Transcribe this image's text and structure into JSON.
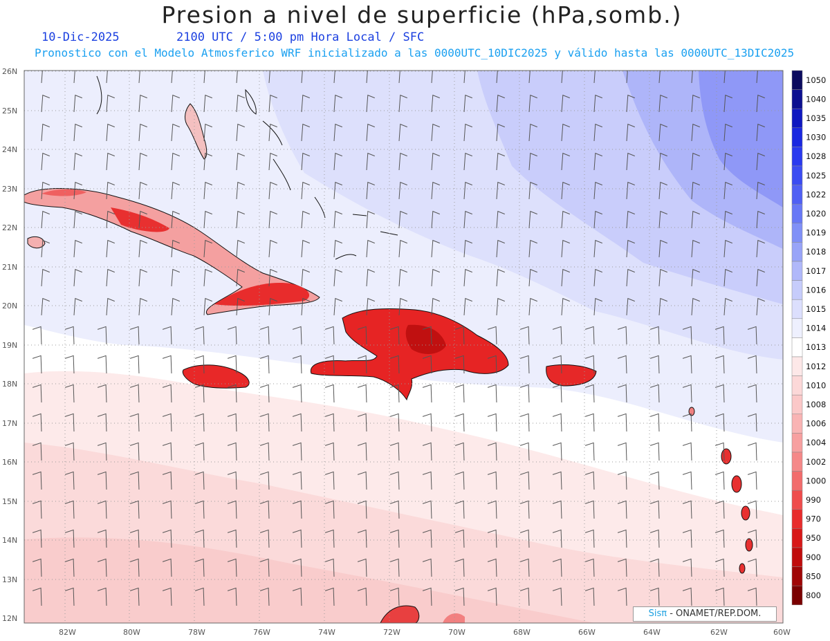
{
  "header": {
    "title": "Presion a nivel de superficie (hPa,somb.)",
    "date": "10-Dic-2025",
    "time": "2100 UTC / 5:00 pm Hora Local / SFC",
    "subtitle": "Pronostico con el Modelo Atmosferico WRF inicializado a las 0000UTC_10DIC2025 y válido hasta las  0000UTC_13DIC2025"
  },
  "map": {
    "lat_labels": [
      "26N",
      "25N",
      "24N",
      "23N",
      "22N",
      "21N",
      "20N",
      "19N",
      "18N",
      "17N",
      "16N",
      "15N",
      "14N",
      "13N",
      "12N"
    ],
    "lon_labels": [
      "82W",
      "80W",
      "78W",
      "76W",
      "74W",
      "72W",
      "70W",
      "68W",
      "66W",
      "64W",
      "62W",
      "60W"
    ]
  },
  "colorbar": {
    "labels": [
      "1050",
      "1040",
      "1035",
      "1030",
      "1028",
      "1025",
      "1022",
      "1020",
      "1019",
      "1018",
      "1017",
      "1016",
      "1015",
      "1014",
      "1013",
      "1012",
      "1010",
      "1008",
      "1006",
      "1004",
      "1002",
      "1000",
      "990",
      "970",
      "950",
      "900",
      "850",
      "800"
    ],
    "colors": [
      "#0b0b5e",
      "#0c1090",
      "#0f18c0",
      "#1a28e0",
      "#2a3aef",
      "#3b4cf2",
      "#5060f4",
      "#6878f6",
      "#8090f7",
      "#98a4f8",
      "#b0b8fa",
      "#c6ccfb",
      "#dcdffd",
      "#eef0fe",
      "#ffffff",
      "#fde8e8",
      "#fcd8d8",
      "#fbc8c8",
      "#f9b4b4",
      "#f7a0a0",
      "#f58888",
      "#f26c6c",
      "#ef4c4c",
      "#e82c2c",
      "#d81818",
      "#c00c0c",
      "#a00606",
      "#7a0000"
    ]
  },
  "credit": {
    "brand": "Sisπ",
    "text": " - ONAMET/REP.DOM."
  }
}
